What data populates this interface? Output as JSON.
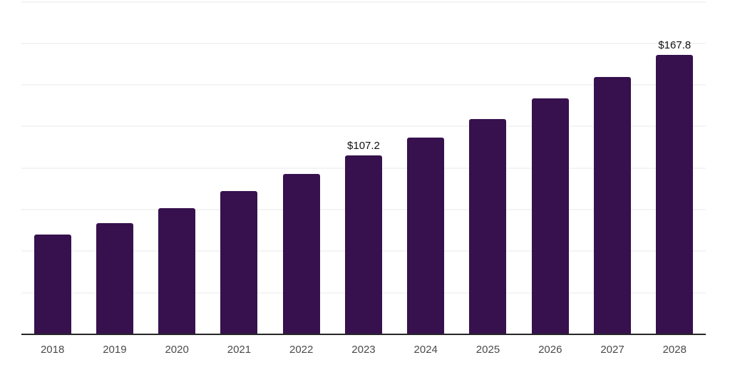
{
  "chart_data": {
    "type": "bar",
    "title": "",
    "xlabel": "",
    "ylabel": "",
    "categories": [
      "2018",
      "2019",
      "2020",
      "2021",
      "2022",
      "2023",
      "2024",
      "2025",
      "2026",
      "2027",
      "2028"
    ],
    "values": [
      59.6,
      66.4,
      75.6,
      85.7,
      96.2,
      107.2,
      117.9,
      129.1,
      141.4,
      154.2,
      167.8
    ],
    "value_prefix": "$",
    "data_labels": [
      {
        "index": 5,
        "text": "$107.2"
      },
      {
        "index": 10,
        "text": "$167.8"
      }
    ],
    "ylim": [
      0,
      200
    ],
    "gridline_step": 25,
    "grid": "horizontal-only",
    "legend": "none",
    "y_axis_tick_labels": "none",
    "colors": {
      "bar": "#36114E",
      "axis": "#262626",
      "gridline": "#f4f4f4",
      "tick_label": "#4a4a4a",
      "data_label": "#111111",
      "background": "#ffffff"
    }
  }
}
